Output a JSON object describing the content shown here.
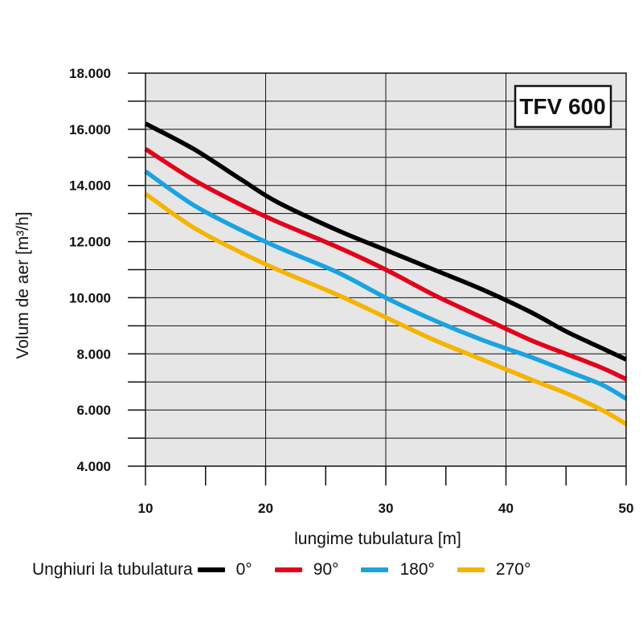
{
  "chart_data": {
    "type": "line",
    "title": "TFV 600",
    "xlabel": "lungime tubulatura [m]",
    "ylabel": "Volum de aer [m³/h]",
    "xlim": [
      10,
      50
    ],
    "ylim": [
      4000,
      18000
    ],
    "xticks": [
      10,
      20,
      30,
      40,
      50
    ],
    "xtick_labels": [
      "10",
      "20",
      "30",
      "40",
      "50"
    ],
    "yticks": [
      4000,
      6000,
      8000,
      10000,
      12000,
      14000,
      16000,
      18000
    ],
    "ytick_labels": [
      "4.000",
      "6.000",
      "8.000",
      "10.000",
      "12.000",
      "14.000",
      "16.000",
      "18.000"
    ],
    "grid": true,
    "legend_title": "Unghiuri la tubulatura",
    "x": [
      10,
      14,
      18,
      21,
      26,
      30,
      34,
      38,
      42,
      45,
      48,
      50
    ],
    "series": [
      {
        "name": "0°",
        "color": "#000000",
        "values": [
          16200,
          15300,
          14200,
          13400,
          12400,
          11700,
          11000,
          10300,
          9500,
          8800,
          8200,
          7800
        ]
      },
      {
        "name": "90°",
        "color": "#e3001b",
        "values": [
          15300,
          14200,
          13300,
          12700,
          11800,
          11000,
          10100,
          9300,
          8500,
          8000,
          7500,
          7100
        ]
      },
      {
        "name": "180°",
        "color": "#1aa3e0",
        "values": [
          14500,
          13300,
          12400,
          11800,
          10900,
          10000,
          9200,
          8500,
          7900,
          7400,
          6900,
          6400
        ]
      },
      {
        "name": "270°",
        "color": "#f5b400",
        "values": [
          13700,
          12500,
          11600,
          11000,
          10100,
          9300,
          8500,
          7800,
          7100,
          6600,
          6000,
          5500
        ]
      }
    ]
  }
}
